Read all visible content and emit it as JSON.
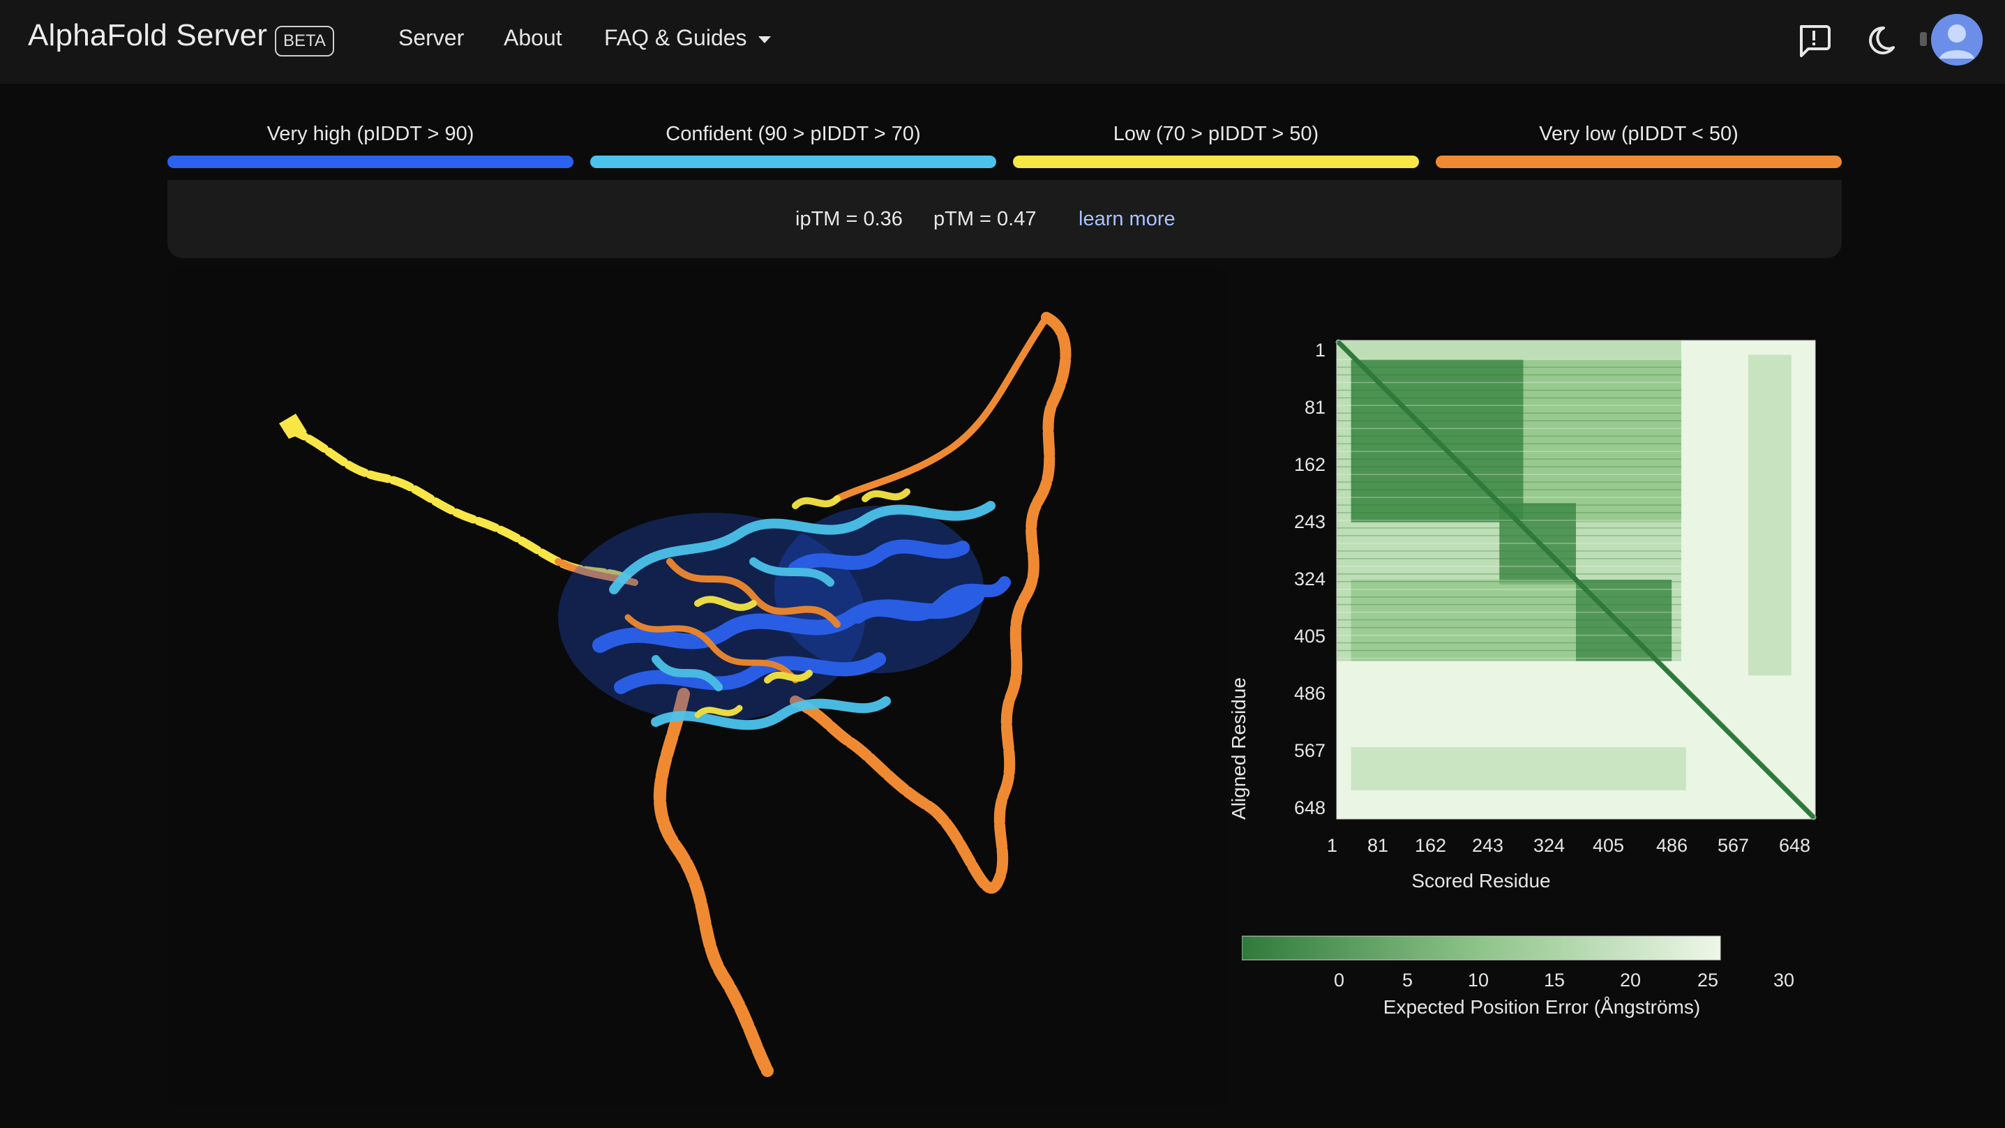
{
  "header": {
    "app_title": "AlphaFold Server",
    "badge": "BETA",
    "nav": {
      "server": "Server",
      "about": "About",
      "faq": "FAQ & Guides"
    },
    "icons": [
      "feedback-icon",
      "dark-mode-icon",
      "account-avatar"
    ]
  },
  "confidence_legend": [
    {
      "label": "Very high (pIDDT > 90)",
      "color": "#2b63f0"
    },
    {
      "label": "Confident (90 > pIDDT > 70)",
      "color": "#4cc3ec"
    },
    {
      "label": "Low (70 > pIDDT > 50)",
      "color": "#f7e646"
    },
    {
      "label": "Very low (pIDDT < 50)",
      "color": "#f08a32"
    }
  ],
  "scores": {
    "iptm": "ipTM = 0.36",
    "ptm": "pTM = 0.47",
    "learn_more": "learn more"
  },
  "chart_data": {
    "type": "heatmap",
    "ylabel": "Aligned Residue",
    "xlabel": "Scored Residue",
    "x_ticks": [
      "1",
      "81",
      "162",
      "243",
      "324",
      "405",
      "486",
      "567",
      "648"
    ],
    "y_ticks": [
      "1",
      "81",
      "162",
      "243",
      "324",
      "405",
      "486",
      "567",
      "648"
    ],
    "colorbar": {
      "ticks": [
        "0",
        "5",
        "10",
        "15",
        "20",
        "25",
        "30"
      ],
      "label": "Expected Position Error (Ångströms)",
      "range": [
        0,
        30
      ],
      "colors": [
        "#2f7a3b",
        "#eef7e8"
      ]
    }
  }
}
